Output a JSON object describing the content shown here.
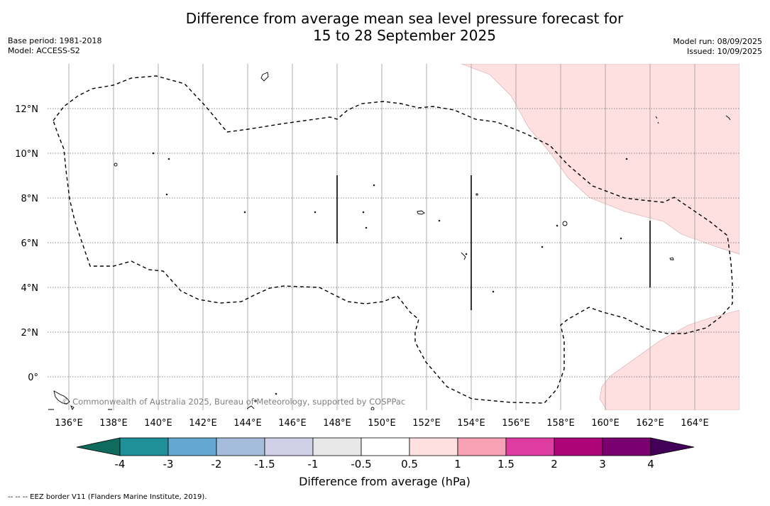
{
  "title": {
    "line1": "Difference from average mean sea level pressure forecast for",
    "line2": "15 to 28 September 2025"
  },
  "info_left": {
    "base_period": "Base period: 1981-2018",
    "model": "Model: ACCESS-S2"
  },
  "info_right": {
    "model_run": "Model run: 08/09/2025",
    "issued": "Issued: 10/09/2025"
  },
  "map": {
    "lon_ticks": [
      "136°E",
      "138°E",
      "140°E",
      "142°E",
      "144°E",
      "146°E",
      "148°E",
      "150°E",
      "152°E",
      "154°E",
      "156°E",
      "158°E",
      "160°E",
      "162°E",
      "164°E"
    ],
    "lat_ticks": [
      "12°N",
      "10°N",
      "8°N",
      "6°N",
      "4°N",
      "2°N",
      "0°"
    ],
    "copyright": "© Commonwealth of Australia 2025, Bureau of Meteorology, supported by COSPPac",
    "anomaly_fill_color": "#ffe0e0"
  },
  "colorbar": {
    "title": "Difference from average (hPa)",
    "tick_labels": [
      "-4",
      "-3",
      "-2",
      "-1.5",
      "-1",
      "-0.5",
      "0.5",
      "1",
      "1.5",
      "2",
      "3",
      "4"
    ],
    "colors": [
      "#0e6b5e",
      "#1f8f98",
      "#62a8d0",
      "#a5bcdc",
      "#cfd0e8",
      "#e8e8e8",
      "#ffffff",
      "#ffe0e0",
      "#f8a0b4",
      "#de3ca0",
      "#ad0478",
      "#7a0070",
      "#420058"
    ]
  },
  "footer": {
    "legend": "--  --  -- EEZ border V11 (Flanders Marine Institute, 2019)."
  }
}
